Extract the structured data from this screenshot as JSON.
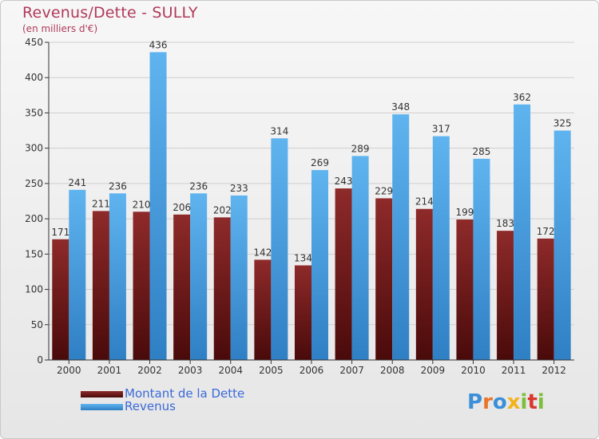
{
  "title": "Revenus/Dette - SULLY",
  "subtitle": "(en milliers d'€)",
  "logo": "Proxiti",
  "chart_data": {
    "type": "bar",
    "title": "Revenus/Dette - SULLY",
    "subtitle": "(en milliers d'€)",
    "categories": [
      "2000",
      "2001",
      "2002",
      "2003",
      "2004",
      "2005",
      "2006",
      "2007",
      "2008",
      "2009",
      "2010",
      "2011",
      "2012"
    ],
    "series": [
      {
        "name": "Montant de la Dette",
        "color": "#7a1f1f",
        "values": [
          171,
          211,
          210,
          206,
          202,
          142,
          134,
          243,
          229,
          214,
          199,
          183,
          172
        ]
      },
      {
        "name": "Revenus",
        "color": "#4ea3e6",
        "values": [
          241,
          236,
          436,
          236,
          233,
          314,
          269,
          289,
          348,
          317,
          285,
          362,
          325
        ]
      }
    ],
    "ylim": [
      0,
      450
    ],
    "yticks": [
      0,
      50,
      100,
      150,
      200,
      250,
      300,
      350,
      400,
      450
    ],
    "grid": true,
    "legend": "bottom-left"
  }
}
